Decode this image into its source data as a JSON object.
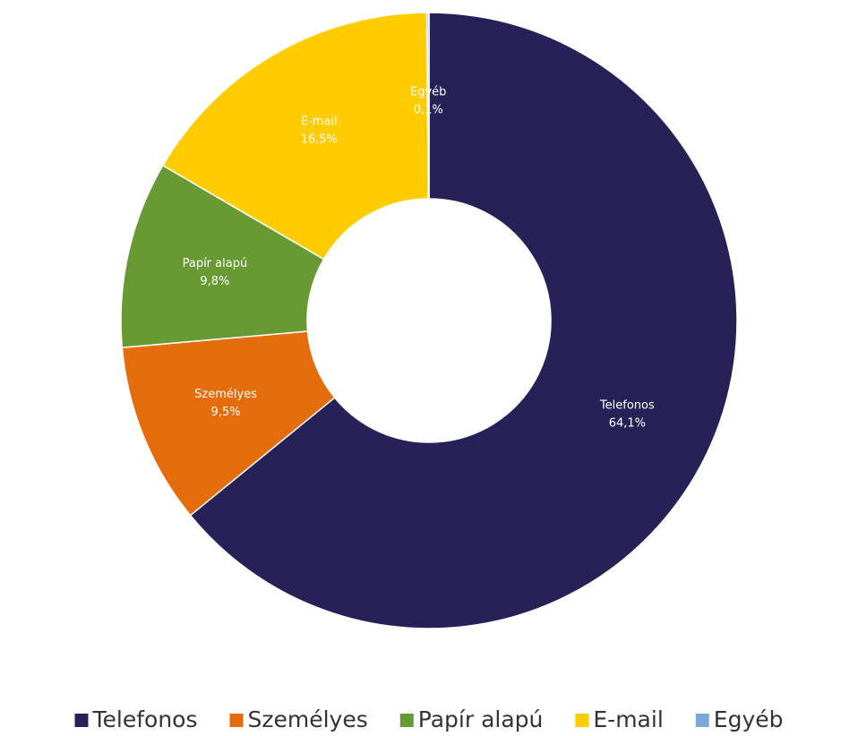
{
  "chart_data": {
    "type": "donut",
    "categories": [
      "Telefonos",
      "Személyes",
      "Papír alapú",
      "E-mail",
      "Egyéb"
    ],
    "values": [
      64.1,
      9.5,
      9.8,
      16.5,
      0.1
    ],
    "value_labels": [
      "64,1%",
      "9,5%",
      "9,8%",
      "16,5%",
      "0,1%"
    ],
    "colors": [
      "#262257",
      "#e46c0a",
      "#689a34",
      "#ffcc00",
      "#7ba7d9"
    ],
    "legend": "bottom"
  }
}
